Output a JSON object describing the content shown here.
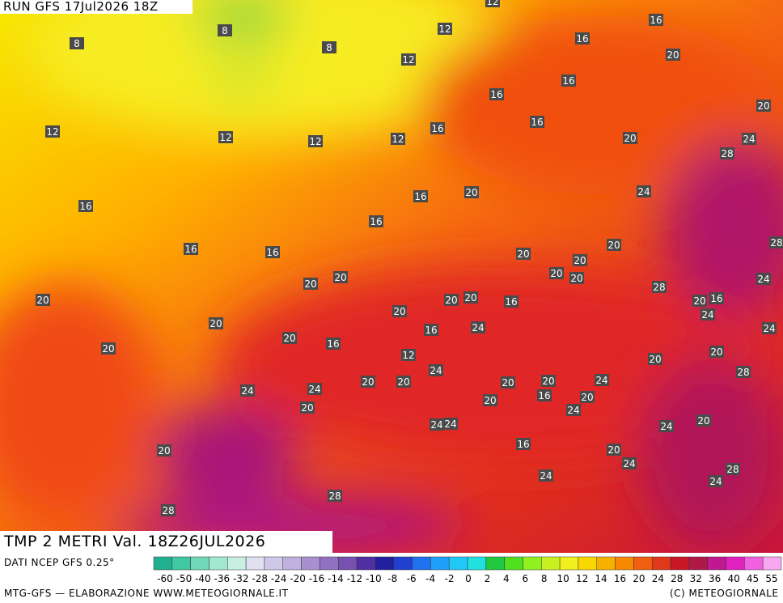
{
  "header": {
    "run": "RUN GFS 17Jul2026 18Z"
  },
  "map_labels": [
    8,
    8,
    8,
    12,
    12,
    12,
    16,
    16,
    20,
    16,
    16,
    20,
    16,
    16,
    12,
    12,
    12,
    12,
    20,
    24,
    28,
    16,
    20,
    24,
    16,
    16,
    28,
    16,
    16,
    20,
    20,
    20,
    20,
    20,
    24,
    20,
    20,
    28,
    20,
    20,
    16,
    24,
    20,
    20,
    20,
    16,
    24,
    20,
    16,
    24,
    20,
    16,
    20,
    12,
    20,
    20,
    24,
    28,
    24,
    20,
    20,
    20,
    20,
    24,
    24,
    16,
    20,
    20,
    20,
    24,
    20,
    24,
    24,
    24,
    16,
    20,
    20,
    24,
    28,
    24,
    24,
    28,
    28
  ],
  "validity": "TMP 2 METRI Val. 18Z26JUL2026",
  "footer": {
    "source": "DATI NCEP GFS 0.25°",
    "credit": "MTG-GFS — ELABORAZIONE WWW.METEOGIORNALE.IT",
    "copyright": "(C) METEOGIORNALE"
  },
  "colorbar": {
    "ticks": [
      -60,
      -50,
      -40,
      -36,
      -32,
      -28,
      -24,
      -20,
      -16,
      -14,
      -12,
      -10,
      -8,
      -6,
      -4,
      -2,
      0,
      2,
      4,
      6,
      8,
      10,
      12,
      14,
      16,
      20,
      24,
      28,
      32,
      36,
      40,
      45,
      55
    ]
  }
}
